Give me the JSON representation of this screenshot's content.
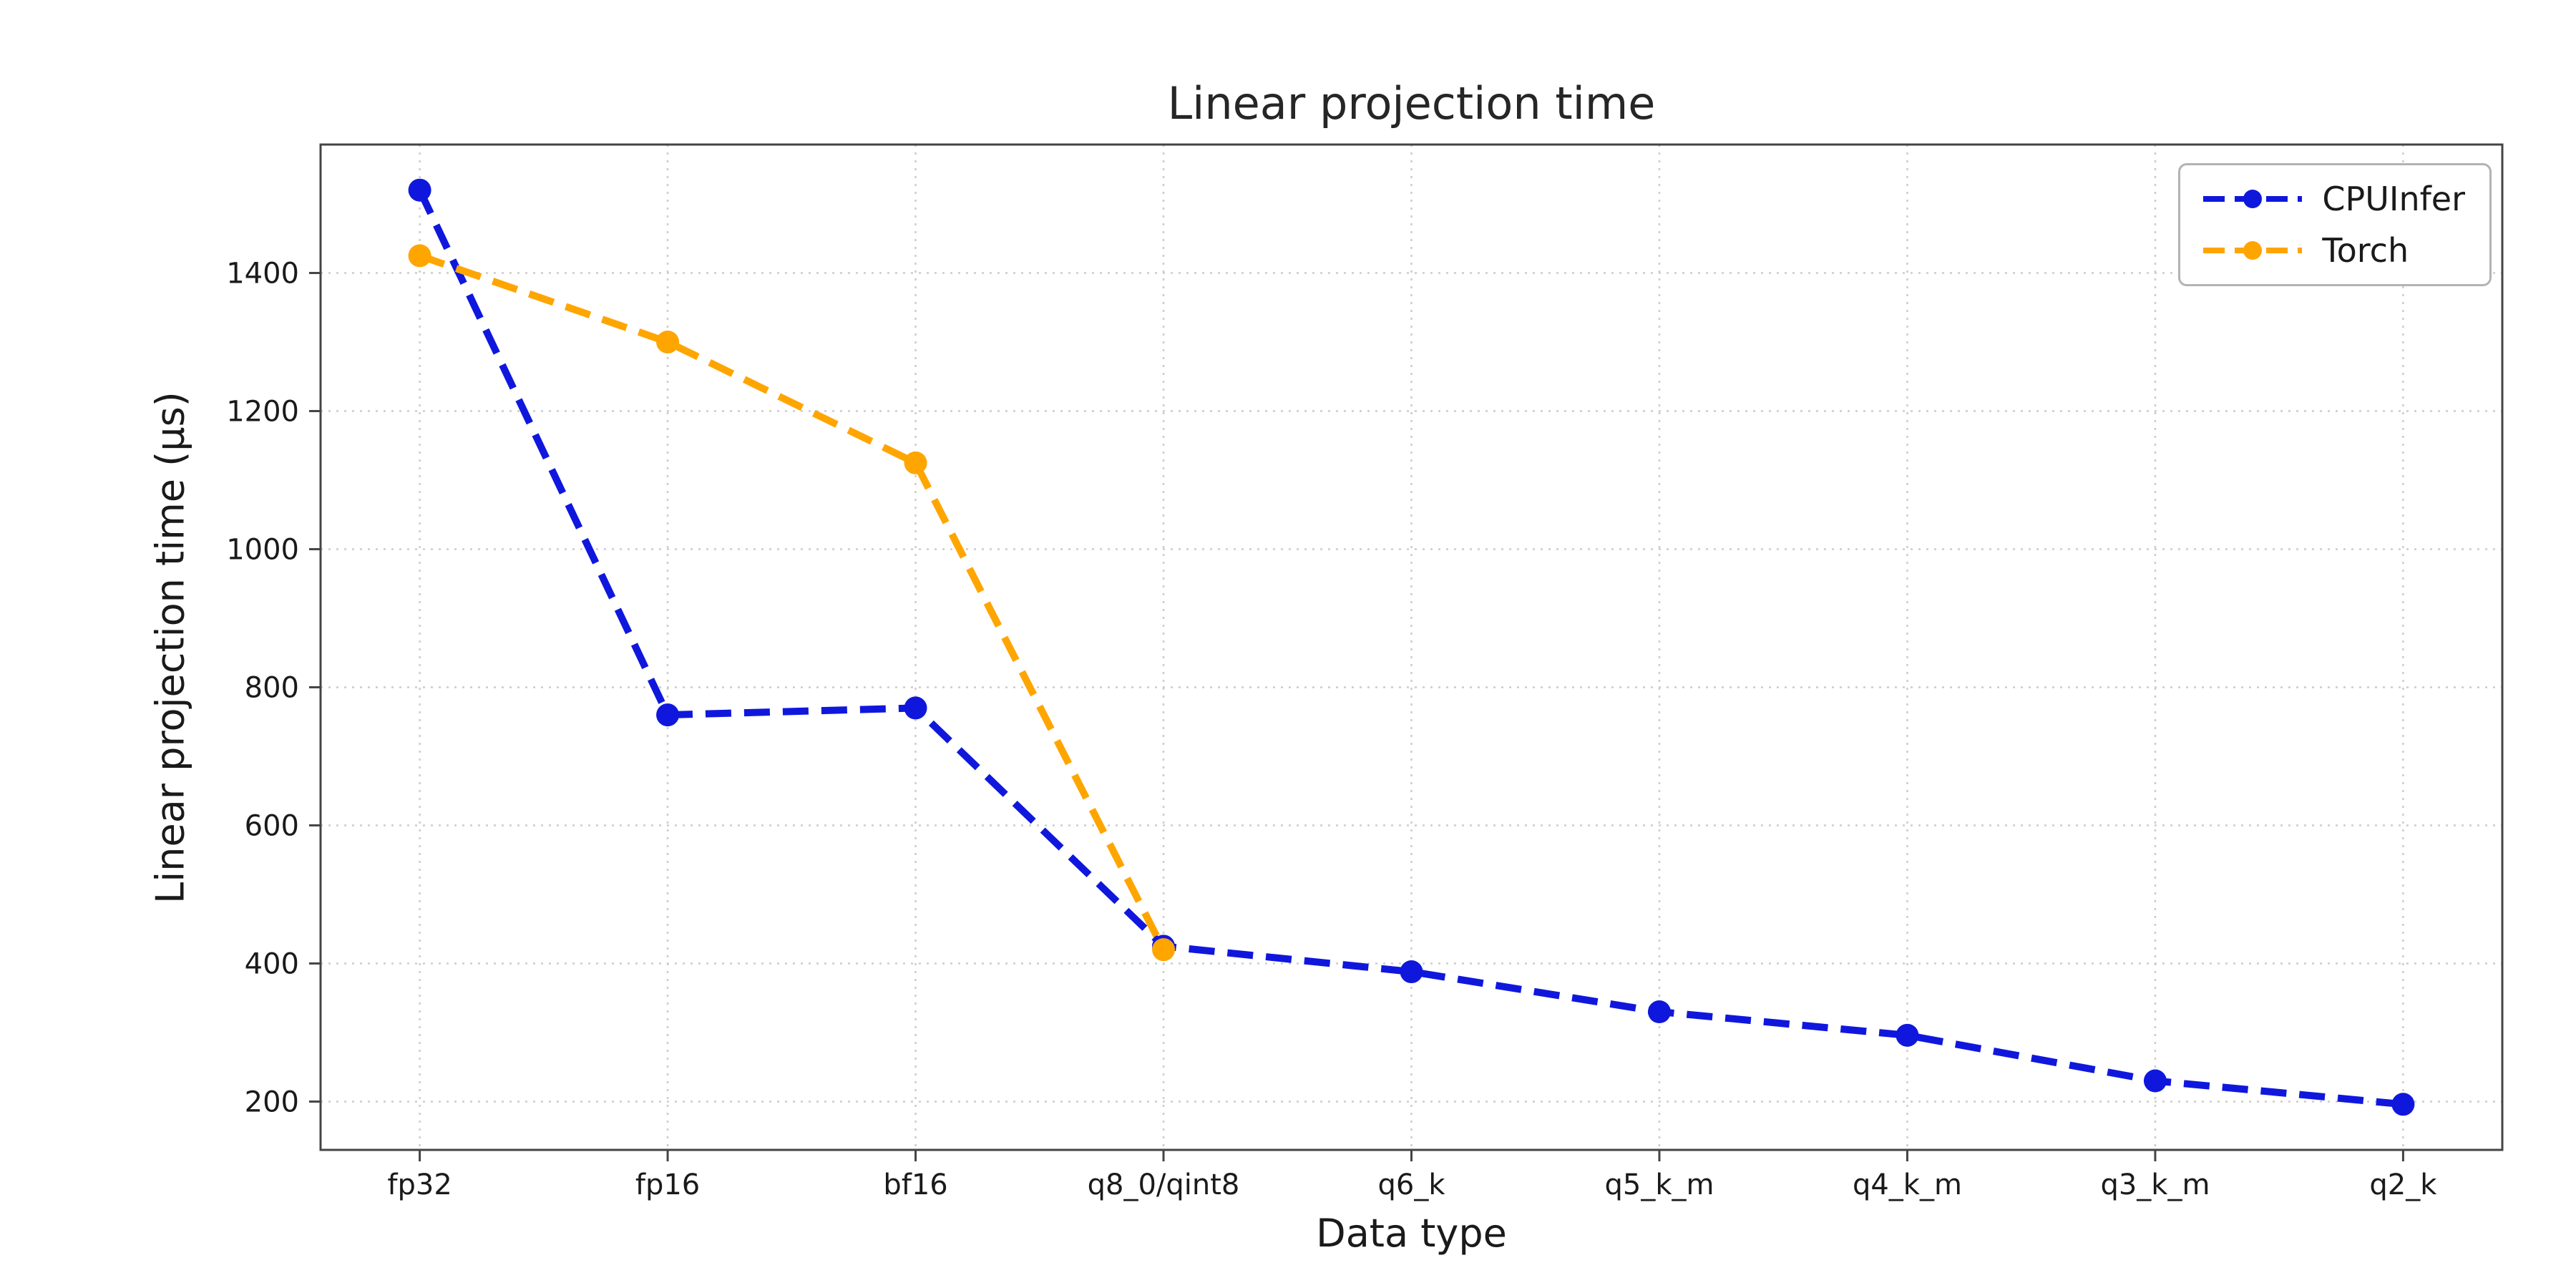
{
  "chart_data": {
    "type": "line",
    "title": "Linear projection time",
    "xlabel": "Data type",
    "ylabel": "Linear projection time (µs)",
    "categories": [
      "fp32",
      "fp16",
      "bf16",
      "q8_0/qint8",
      "q6_k",
      "q5_k_m",
      "q4_k_m",
      "q3_k_m",
      "q2_k"
    ],
    "series": [
      {
        "name": "CPUInfer",
        "color": "#1017dd",
        "line_style": "dashed",
        "marker": "o",
        "values": [
          1520,
          760,
          770,
          425,
          388,
          330,
          296,
          230,
          196
        ]
      },
      {
        "name": "Torch",
        "color": "#ffa500",
        "line_style": "dashed",
        "marker": "o",
        "values": [
          1425,
          1300,
          1125,
          420,
          null,
          null,
          null,
          null,
          null
        ]
      }
    ],
    "yticks": [
      200,
      400,
      600,
      800,
      1000,
      1200,
      1400
    ],
    "ylim": [
      130,
      1586
    ],
    "grid": true,
    "grid_style": "dotted",
    "grid_color": "#cccccc",
    "legend_position": "upper right",
    "background": "#ffffff"
  }
}
